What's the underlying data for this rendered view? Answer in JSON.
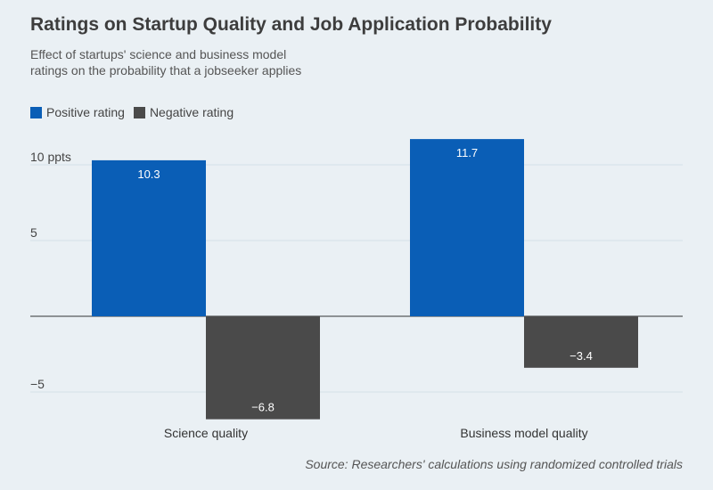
{
  "title": "Ratings on Startup Quality and Job Application Probability",
  "subtitle": "Effect of startups' science and business model ratings on the probability that a jobseeker applies",
  "source": "Source: Researchers' calculations using randomized controlled trials",
  "colors": {
    "positive": "#0a5eb6",
    "negative": "#4a4a4a",
    "grid": "#d4dfe8",
    "zero": "#333333"
  },
  "chart_data": {
    "type": "bar",
    "categories": [
      "Science quality",
      "Business model quality"
    ],
    "series": [
      {
        "name": "Positive rating",
        "values": [
          10.3,
          11.7
        ],
        "labels": [
          "10.3",
          "11.7"
        ]
      },
      {
        "name": "Negative rating",
        "values": [
          -6.8,
          -3.4
        ],
        "labels": [
          "−6.8",
          "−3.4"
        ]
      }
    ],
    "y_ticks": [
      {
        "value": 10,
        "label": "10 ppts"
      },
      {
        "value": 5,
        "label": "5"
      },
      {
        "value": 0,
        "label": ""
      },
      {
        "value": -5,
        "label": "−5"
      }
    ],
    "ylim": [
      -6.8,
      11.7
    ],
    "xlabel": "",
    "ylabel": "",
    "legend": "top-left",
    "grid": true
  }
}
